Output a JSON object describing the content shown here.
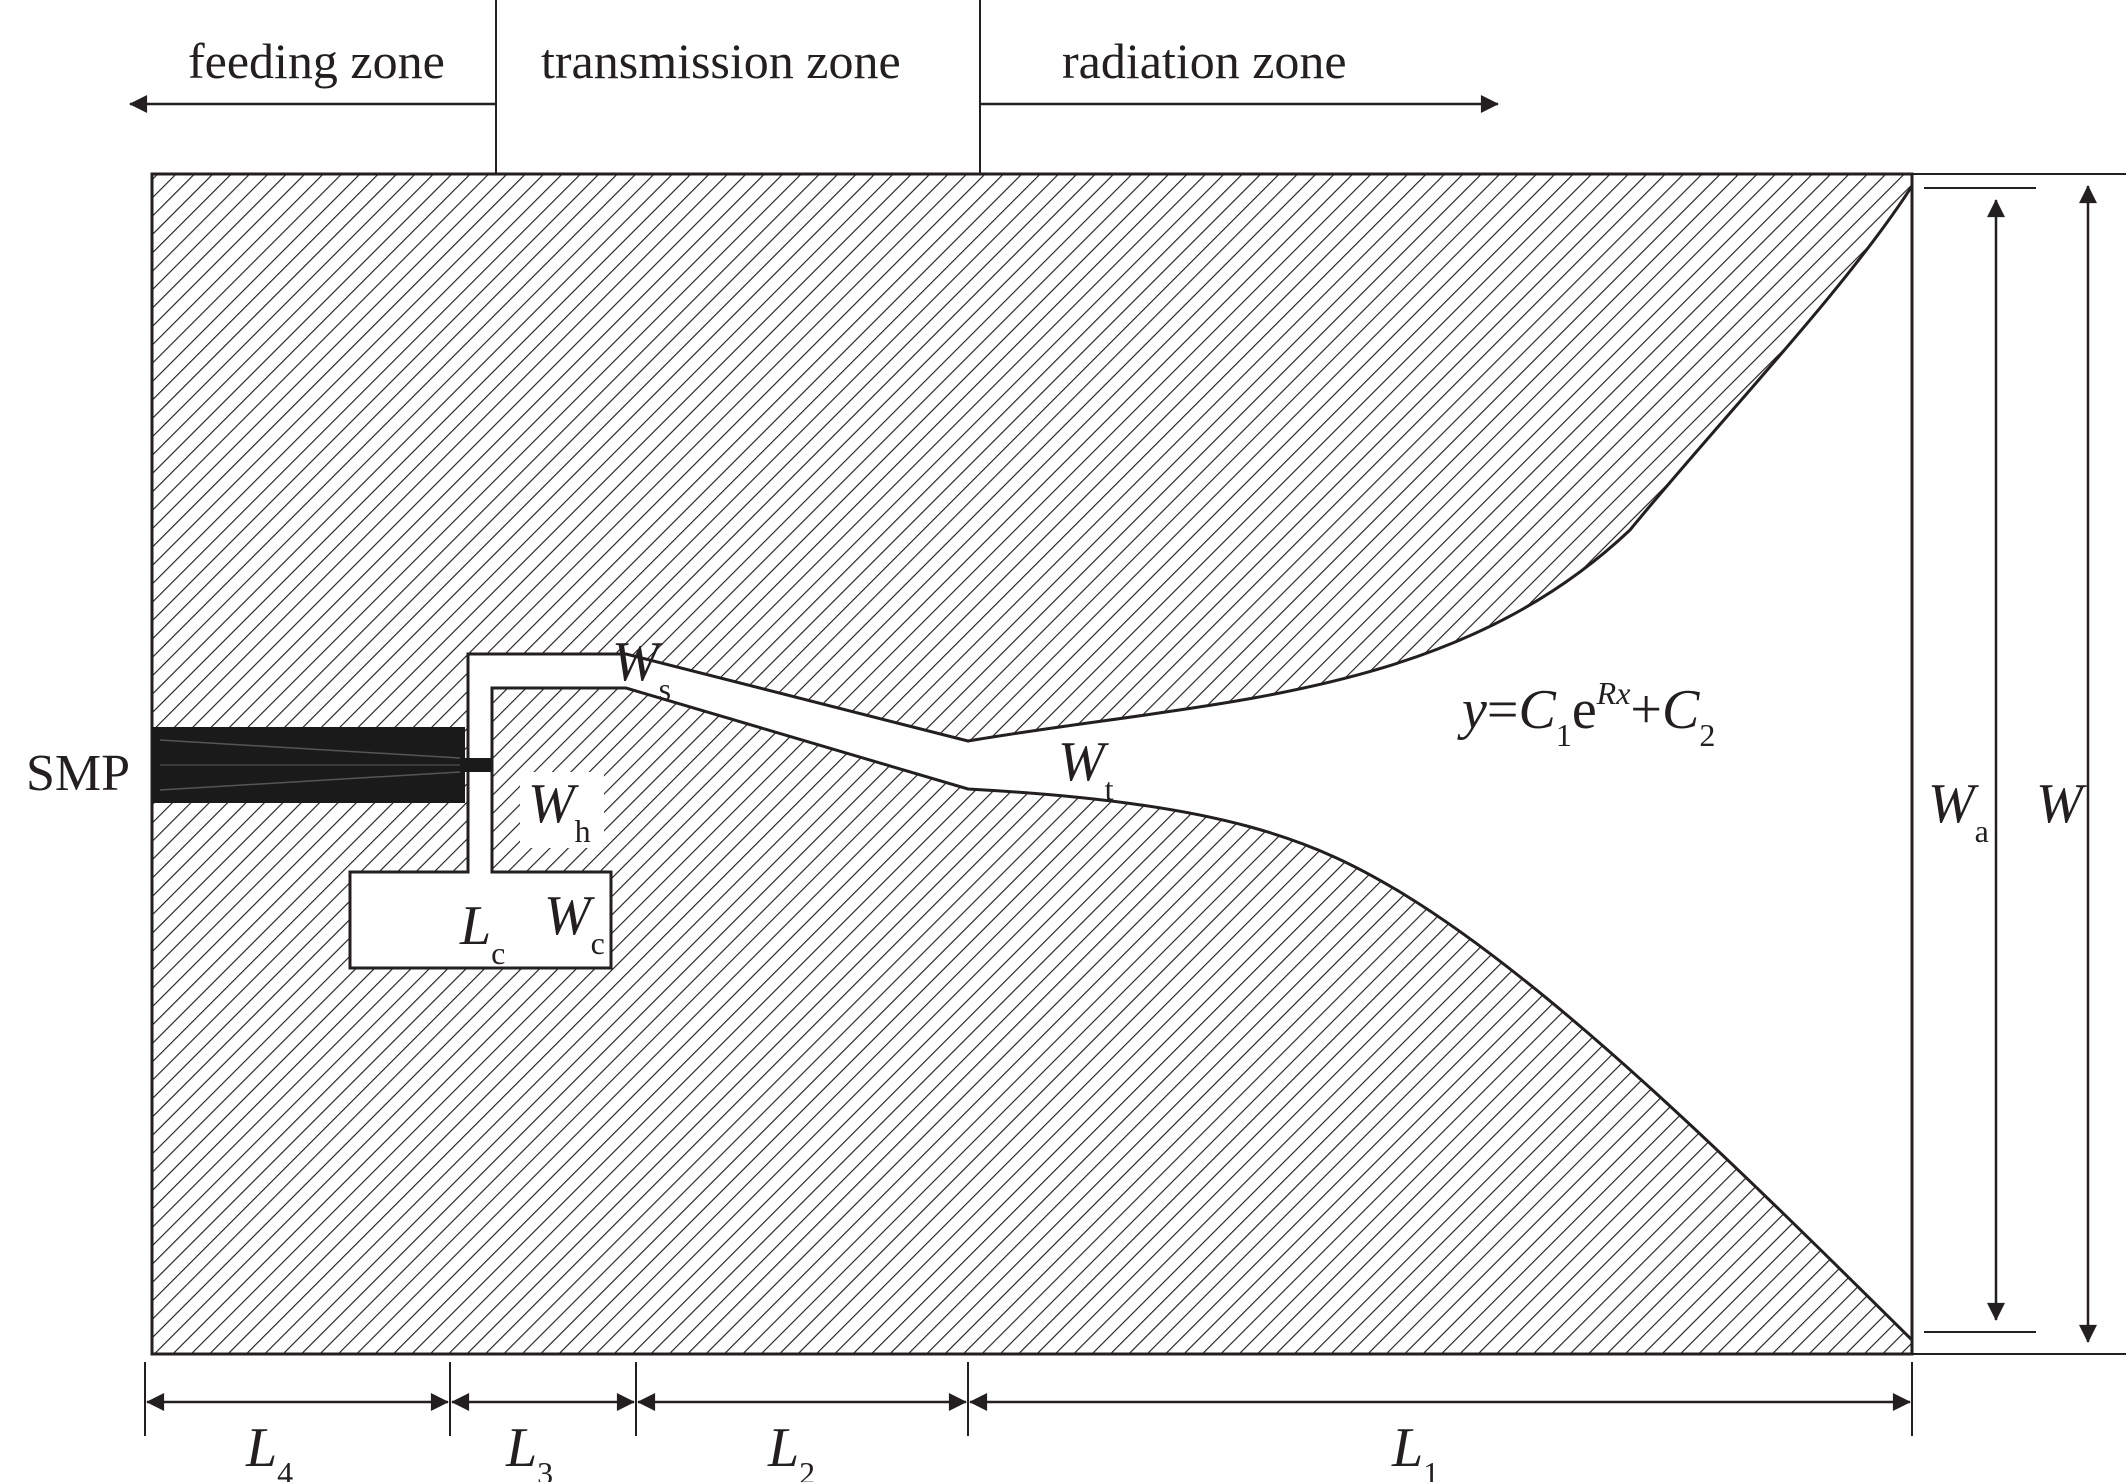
{
  "zones": {
    "feeding": "feeding zone",
    "transmission": "transmission zone",
    "radiation": "radiation zone"
  },
  "connector": "SMP",
  "labels": {
    "Ws": {
      "main": "W",
      "sub": "s"
    },
    "Wt": {
      "main": "W",
      "sub": "t"
    },
    "Wh": {
      "main": "W",
      "sub": "h"
    },
    "Lc": {
      "main": "L",
      "sub": "c"
    },
    "Wc": {
      "main": "W",
      "sub": "c"
    },
    "Wa": {
      "main": "W",
      "sub": "a"
    },
    "W": {
      "main": "W"
    },
    "L1": {
      "main": "L",
      "sub": "1"
    },
    "L2": {
      "main": "L",
      "sub": "2"
    },
    "L3": {
      "main": "L",
      "sub": "3"
    },
    "L4": {
      "main": "L",
      "sub": "4"
    }
  },
  "formula": {
    "y": "y",
    "eq": "=",
    "c1": "C",
    "c1_sub": "1",
    "e": "e",
    "exp": "Rx",
    "plus": "+",
    "c2": "C",
    "c2_sub": "2"
  },
  "colors": {
    "ink": "#231f20",
    "connector": "#1a1a1a",
    "background": "#ffffff"
  }
}
